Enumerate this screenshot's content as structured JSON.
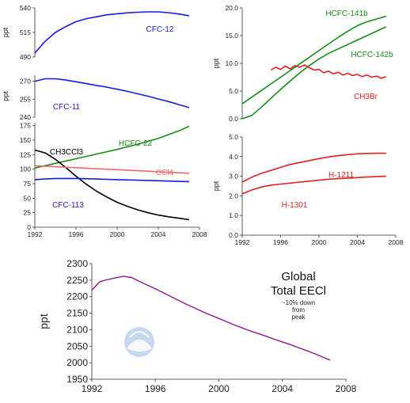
{
  "chart_data": [
    {
      "id": "cfc12",
      "type": "line",
      "ylabel": "ppt",
      "xlim": [
        1992,
        2008
      ],
      "ylim": [
        490,
        540
      ],
      "yticks": [
        490,
        515,
        540
      ],
      "xticks": [],
      "series": [
        {
          "name": "CFC-12",
          "color": "#1a1adb",
          "x": [
            1992,
            1993,
            1994,
            1995,
            1996,
            1997,
            1998,
            1999,
            2000,
            2001,
            2002,
            2003,
            2004,
            2005,
            2006,
            2007
          ],
          "y": [
            494,
            506,
            515,
            521,
            526,
            529,
            531,
            533,
            534,
            535,
            535.6,
            536,
            536,
            535.2,
            533.8,
            532
          ]
        }
      ]
    },
    {
      "id": "cfc11",
      "type": "line",
      "ylabel": "ppt",
      "xlim": [
        1992,
        2008
      ],
      "ylim": [
        240,
        275
      ],
      "yticks": [
        240,
        255,
        270
      ],
      "xticks": [],
      "series": [
        {
          "name": "CFC-11",
          "color": "#1a1adb",
          "x": [
            1992,
            1993,
            1994,
            1995,
            1996,
            1997,
            1998,
            1999,
            2000,
            2001,
            2002,
            2003,
            2004,
            2005,
            2006,
            2007
          ],
          "y": [
            270,
            272,
            272,
            271,
            269.5,
            268,
            266.5,
            265,
            263.3,
            261.5,
            259.5,
            257.5,
            255.2,
            253,
            250.5,
            248
          ]
        }
      ]
    },
    {
      "id": "chlorinated",
      "type": "line",
      "ylabel": "",
      "xlim": [
        1992,
        2008
      ],
      "ylim": [
        0,
        180
      ],
      "yticks": [
        0,
        25,
        50,
        75,
        100,
        125,
        150,
        175
      ],
      "xticks": [
        1992,
        1996,
        2000,
        2004,
        2008
      ],
      "series": [
        {
          "name": "HCFC-22",
          "color": "#1a8a1a",
          "x": [
            1992,
            1994,
            1996,
            1998,
            2000,
            2002,
            2004,
            2006,
            2007
          ],
          "y": [
            102,
            110,
            118,
            126,
            134,
            143,
            153,
            166,
            174
          ]
        },
        {
          "name": "CH3CCl3",
          "color": "#000000",
          "x": [
            1992,
            1993,
            1994,
            1995,
            1996,
            1997,
            1998,
            1999,
            2000,
            2001,
            2002,
            2003,
            2004,
            2005,
            2006,
            2007
          ],
          "y": [
            133,
            128,
            117,
            103,
            88,
            74,
            62,
            52,
            43,
            36,
            30,
            25,
            21,
            18,
            15.5,
            13
          ]
        },
        {
          "name": "CCl4",
          "color": "#ee6a6a",
          "x": [
            1992,
            2007
          ],
          "y": [
            106,
            93
          ]
        },
        {
          "name": "CFC-113",
          "color": "#1a1adb",
          "x": [
            1992,
            1993,
            1994,
            1996,
            1998,
            2000,
            2002,
            2004,
            2006,
            2007
          ],
          "y": [
            82,
            83,
            84,
            84,
            83,
            82,
            81,
            80,
            79,
            78.5
          ]
        }
      ]
    },
    {
      "id": "hcfc141b",
      "type": "line",
      "ylabel": "ppt",
      "xlim": [
        1992,
        2008
      ],
      "ylim": [
        0,
        20
      ],
      "yticks": [
        0.0,
        5.0,
        10.0,
        15.0,
        20.0
      ],
      "xticks": [],
      "series": [
        {
          "name": "HCFC-141b",
          "color": "#1a8a1a",
          "x": [
            1992,
            1993,
            1994,
            1995,
            1996,
            1997,
            1998,
            1999,
            2000,
            2001,
            2002,
            2003,
            2004,
            2005,
            2006,
            2007
          ],
          "y": [
            2.7,
            3.9,
            5.1,
            6.3,
            7.5,
            8.7,
            9.9,
            11.1,
            12.3,
            13.5,
            14.7,
            15.8,
            16.8,
            17.5,
            18.0,
            18.5
          ]
        },
        {
          "name": "HCFC-142b",
          "color": "#1a8a1a",
          "x": [
            1992,
            1993,
            1994,
            1995,
            1996,
            1997,
            1998,
            1999,
            2000,
            2001,
            2002,
            2003,
            2004,
            2005,
            2006,
            2007
          ],
          "y": [
            0.0,
            0.6,
            2.1,
            3.7,
            5.3,
            6.8,
            8.3,
            9.6,
            10.8,
            11.8,
            12.6,
            13.4,
            14.2,
            15.0,
            15.8,
            16.6
          ]
        },
        {
          "name": "CH3Br",
          "color": "#dd2222",
          "x": [
            1995,
            1995.5,
            1996,
            1996.5,
            1997,
            1997.5,
            1998,
            1998.5,
            1999,
            1999.5,
            2000,
            2000.5,
            2001,
            2001.5,
            2002,
            2002.5,
            2003,
            2003.5,
            2004,
            2004.5,
            2005,
            2005.5,
            2006,
            2006.5,
            2007
          ],
          "y": [
            8.8,
            9.3,
            8.9,
            9.5,
            9.0,
            9.6,
            9.3,
            9.7,
            9.2,
            8.8,
            8.9,
            8.3,
            8.6,
            8.1,
            8.4,
            7.9,
            8.2,
            7.8,
            8.0,
            7.6,
            7.9,
            7.5,
            7.7,
            7.3,
            7.6
          ]
        }
      ]
    },
    {
      "id": "halons",
      "type": "line",
      "ylabel": "ppt",
      "xlim": [
        1992,
        2008
      ],
      "ylim": [
        0,
        5
      ],
      "yticks": [
        0.0,
        1.0,
        2.0,
        3.0,
        4.0,
        5.0
      ],
      "xticks": [
        1992,
        1996,
        2000,
        2004,
        2008
      ],
      "series": [
        {
          "name": "H-1211",
          "color": "#dd2222",
          "x": [
            1992,
            1993,
            1994,
            1995,
            1996,
            1997,
            1998,
            1999,
            2000,
            2001,
            2002,
            2003,
            2004,
            2005,
            2006,
            2007
          ],
          "y": [
            2.7,
            2.95,
            3.15,
            3.3,
            3.45,
            3.6,
            3.7,
            3.8,
            3.9,
            3.98,
            4.05,
            4.1,
            4.14,
            4.16,
            4.17,
            4.17
          ]
        },
        {
          "name": "H-1301",
          "color": "#dd2222",
          "x": [
            1992,
            1993,
            1994,
            1995,
            1996,
            1997,
            1998,
            1999,
            2000,
            2001,
            2002,
            2003,
            2004,
            2005,
            2006,
            2007
          ],
          "y": [
            2.1,
            2.3,
            2.45,
            2.55,
            2.6,
            2.65,
            2.7,
            2.75,
            2.8,
            2.85,
            2.88,
            2.9,
            2.93,
            2.96,
            2.98,
            3.0
          ]
        }
      ]
    },
    {
      "id": "eecl",
      "type": "line",
      "title": "Global",
      "subtitle": "Total EECl",
      "annotation": [
        "~10% down",
        "from",
        "peak"
      ],
      "ylabel": "ppt",
      "xlim": [
        1992,
        2008
      ],
      "ylim": [
        1950,
        2300
      ],
      "yticks": [
        1950,
        2000,
        2050,
        2100,
        2150,
        2200,
        2250,
        2300
      ],
      "xticks": [
        1992,
        1996,
        2000,
        2004,
        2008
      ],
      "series": [
        {
          "name": "EECl",
          "color": "#8a1a8a",
          "x": [
            1992,
            1992.5,
            1993,
            1993.5,
            1994,
            1994.5,
            1995,
            1995.5,
            1996,
            1996.5,
            1997,
            1997.5,
            1998,
            1998.5,
            1999,
            1999.5,
            2000,
            2000.5,
            2001,
            2001.5,
            2002,
            2002.5,
            2003,
            2003.5,
            2004,
            2004.5,
            2005,
            2005.5,
            2006,
            2006.5,
            2007
          ],
          "y": [
            2220,
            2245,
            2252,
            2257,
            2262,
            2258,
            2246,
            2235,
            2224,
            2212,
            2200,
            2188,
            2176,
            2165,
            2154,
            2144,
            2134,
            2124,
            2114,
            2105,
            2096,
            2088,
            2080,
            2071,
            2063,
            2055,
            2046,
            2037,
            2028,
            2018,
            2008
          ]
        }
      ]
    }
  ]
}
